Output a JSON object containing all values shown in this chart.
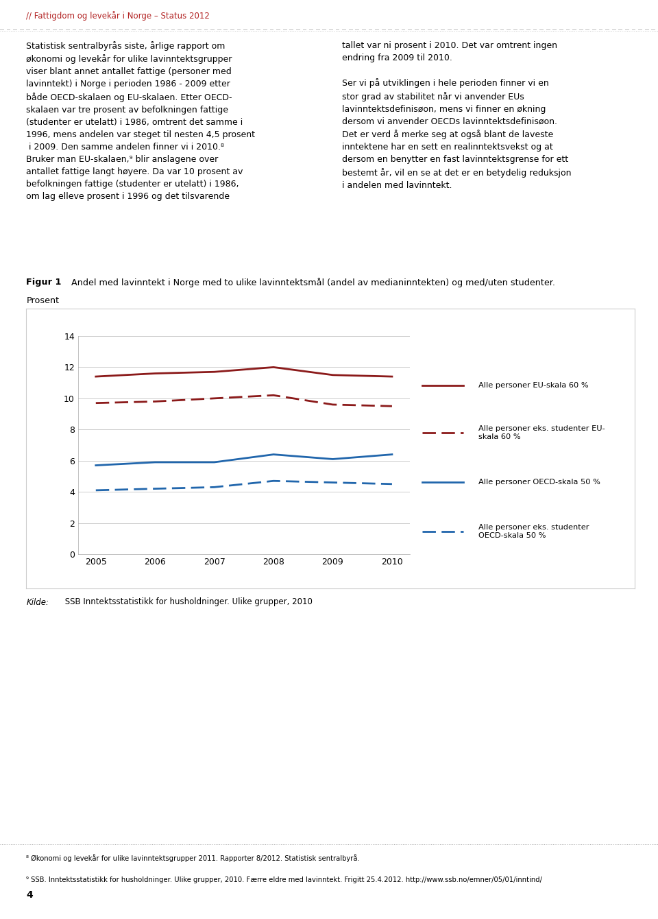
{
  "years": [
    2005,
    2006,
    2007,
    2008,
    2009,
    2010
  ],
  "eu_solid": [
    11.4,
    11.6,
    11.7,
    12.0,
    11.5,
    11.4
  ],
  "eu_dashed": [
    9.7,
    9.8,
    10.0,
    10.2,
    9.6,
    9.5
  ],
  "oecd_solid": [
    5.7,
    5.9,
    5.9,
    6.4,
    6.1,
    6.4
  ],
  "oecd_dashed": [
    4.1,
    4.2,
    4.3,
    4.7,
    4.6,
    4.5
  ],
  "eu_color": "#8b1a1a",
  "oecd_color": "#2166ac",
  "ylim": [
    0,
    14
  ],
  "yticks": [
    0,
    2,
    4,
    6,
    8,
    10,
    12,
    14
  ],
  "xlim": [
    2004.7,
    2010.3
  ],
  "title_bold": "Figur 1",
  "title_rest": " Andel med lavinntekt i Norge med to ulike lavinntektsmål (andel av medianinntekten) og med/uten studenter.",
  "subtitle": "Prosent",
  "legend_labels": [
    "Alle personer EU-skala 60 %",
    "Alle personer eks. studenter EU-\nskala 60 %",
    "Alle personer OECD-skala 50 %",
    "Alle personer eks. studenter\nOECD-skala 50 %"
  ],
  "header_text": "// Fattigdom og levekår i Norge – Status 2012",
  "header_color": "#b22222",
  "source_italic": "Kilde:",
  "source_rest": " SSB Inntektsstatistikk for husholdninger. Ulike grupper, 2010",
  "footnote1": "⁸ Økonomi og levekår for ulike lavinntektsgrupper 2011. Rapporter 8/2012. Statistisk sentralbyrå.",
  "footnote2": "⁹ SSB. Inntektsstatistikk for husholdninger. Ulike grupper, 2010. Færre eldre med lavinntekt. Frigitt 25.4.2012. http://www.ssb.no/emner/05/01/inntind/",
  "page_number": "4",
  "left_col_text": "Statistisk sentralbyrås siste, årlige rapport om\nøkonomi og levekår for ulike lavinntektsgrupper\nviser blant annet antallet fattige (personer med\nlavinntekt) i Norge i perioden 1986 - 2009 etter\nbåde OECD-skalaen og EU-skalaen. Etter OECD-\nskalaen var tre prosent av befolkningen fattige\n(studenter er utelatt) i 1986, omtrent det samme i\n1996, mens andelen var steget til nesten 4,5 prosent\n i 2009. Den samme andelen finner vi i 2010.⁸\nBruker man EU-skalaen,⁹ blir anslagene over\nantallet fattige langt høyere. Da var 10 prosent av\nbefolkningen fattige (studenter er utelatt) i 1986,\nom lag elleve prosent i 1996 og det tilsvarende",
  "right_col_text": "tallet var ni prosent i 2010. Det var omtrent ingen\nendring fra 2009 til 2010.\n\nSer vi på utviklingen i hele perioden finner vi en\nstor grad av stabilitet når vi anvender EUs\nlavinntektsdefinisøon, mens vi finner en økning\ndersom vi anvender OECDs lavinntektsdefinisøon.\nDet er verd å merke seg at også blant de laveste\ninntektene har en sett en realinntektsvekst og at\ndersom en benytter en fast lavinntektsgrense for ett\nbestemt år, vil en se at det er en betydelig reduksjon\ni andelen med lavinntekt."
}
